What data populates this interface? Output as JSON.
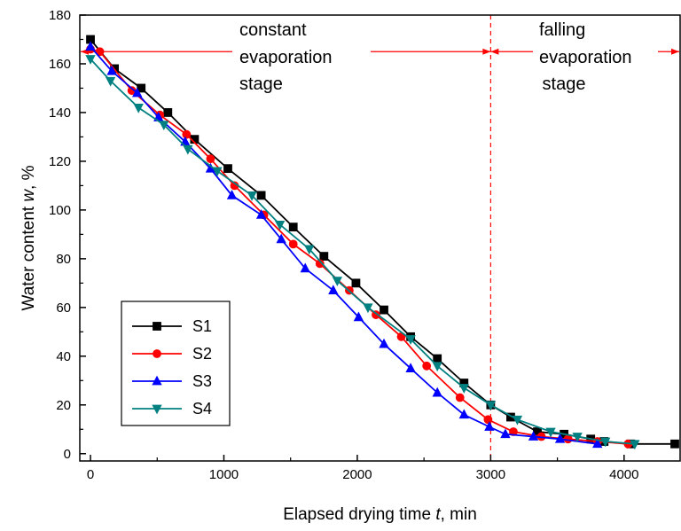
{
  "chart_data": {
    "type": "line",
    "xlabel": "Elapsed drying time t, min",
    "xlabel_parts": {
      "pre": "Elapsed drying time ",
      "var": "t",
      "post": ", min"
    },
    "ylabel": "Water content w, %",
    "ylabel_parts": {
      "pre": "Water content ",
      "var": "w",
      "post": ", %"
    },
    "xlim": [
      -80,
      4420
    ],
    "ylim": [
      -3,
      180
    ],
    "xticks": [
      0,
      1000,
      2000,
      3000,
      4000
    ],
    "yticks": [
      0,
      20,
      40,
      60,
      80,
      100,
      120,
      140,
      160,
      180
    ],
    "grid": false,
    "legend_position": "bottom-left",
    "annotations": {
      "constant": [
        "constant",
        "evaporation",
        "stage"
      ],
      "falling": [
        "falling",
        "evaporation",
        " stage"
      ],
      "divider_x": 3000,
      "arrow_y": 165
    },
    "series": [
      {
        "name": "S1",
        "color": "#000000",
        "marker": "square",
        "x": [
          0,
          180,
          380,
          580,
          780,
          1030,
          1280,
          1520,
          1750,
          1990,
          2200,
          2400,
          2600,
          2800,
          3000,
          3150,
          3350,
          3550,
          3750,
          3850,
          4050,
          4380
        ],
        "y": [
          170,
          158,
          150,
          140,
          129,
          117,
          106,
          93,
          81,
          70,
          59,
          48,
          39,
          29,
          20,
          15,
          9,
          8,
          6,
          5,
          4,
          4
        ]
      },
      {
        "name": "S2",
        "color": "#ff0000",
        "marker": "circle",
        "x": [
          0,
          70,
          310,
          520,
          720,
          900,
          1080,
          1300,
          1520,
          1720,
          1940,
          2140,
          2330,
          2520,
          2770,
          2980,
          3170,
          3380,
          3580,
          3800,
          4030
        ],
        "y": [
          166,
          165,
          149,
          139,
          131,
          121,
          110,
          98,
          86,
          78,
          67,
          57,
          48,
          36,
          23,
          14,
          9,
          7,
          6,
          5,
          4
        ]
      },
      {
        "name": "S3",
        "color": "#0000ff",
        "marker": "triangle-up",
        "x": [
          0,
          160,
          350,
          510,
          710,
          900,
          1060,
          1280,
          1430,
          1610,
          1820,
          2010,
          2200,
          2400,
          2600,
          2800,
          2990,
          3110,
          3320,
          3520,
          3800
        ],
        "y": [
          167,
          157,
          148,
          138,
          128,
          117,
          106,
          98,
          88,
          76,
          67,
          56,
          45,
          35,
          25,
          16,
          11,
          8,
          7,
          6,
          4
        ]
      },
      {
        "name": "S4",
        "color": "#008080",
        "marker": "triangle-down",
        "x": [
          0,
          150,
          360,
          550,
          730,
          950,
          1210,
          1420,
          1640,
          1850,
          2080,
          2400,
          2600,
          2800,
          3000,
          3200,
          3450,
          3650,
          3860,
          4080
        ],
        "y": [
          162,
          153,
          142,
          135,
          125,
          116,
          106,
          94,
          84,
          71,
          60,
          47,
          36,
          27,
          20,
          14,
          9,
          7,
          5,
          4
        ]
      }
    ]
  }
}
